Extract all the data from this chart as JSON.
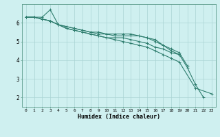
{
  "bg_color": "#cff0f0",
  "grid_color": "#aad4d4",
  "line_color": "#2e7d6e",
  "xlabel": "Humidex (Indice chaleur)",
  "xlim": [
    -0.5,
    23.5
  ],
  "ylim": [
    1.5,
    7.0
  ],
  "yticks": [
    2,
    3,
    4,
    5,
    6
  ],
  "xticks": [
    0,
    1,
    2,
    3,
    4,
    5,
    6,
    7,
    8,
    9,
    10,
    11,
    12,
    13,
    14,
    15,
    16,
    17,
    18,
    19,
    20,
    21,
    22,
    23
  ],
  "series": [
    {
      "x": [
        0,
        1,
        2,
        3,
        4,
        5,
        6,
        7,
        8,
        9,
        10,
        11,
        12,
        13,
        14,
        15,
        16,
        17,
        18,
        19
      ],
      "y": [
        6.3,
        6.3,
        6.3,
        6.7,
        5.9,
        5.8,
        5.7,
        5.6,
        5.5,
        5.5,
        5.4,
        5.4,
        5.4,
        5.4,
        5.3,
        5.2,
        5.1,
        4.8,
        4.5,
        4.3
      ]
    },
    {
      "x": [
        0,
        1,
        2,
        3,
        4,
        5,
        6,
        7,
        8,
        9,
        10,
        11,
        12,
        13,
        14,
        15,
        16,
        17,
        18,
        19,
        20
      ],
      "y": [
        6.3,
        6.3,
        6.2,
        6.1,
        5.9,
        5.8,
        5.7,
        5.6,
        5.5,
        5.4,
        5.4,
        5.3,
        5.3,
        5.3,
        5.3,
        5.2,
        5.0,
        4.8,
        4.6,
        4.4,
        3.7
      ]
    },
    {
      "x": [
        0,
        1,
        2,
        3,
        4,
        5,
        6,
        7,
        8,
        9,
        10,
        11,
        12,
        13,
        14,
        15,
        16,
        17,
        18,
        19,
        20,
        21,
        22
      ],
      "y": [
        6.3,
        6.3,
        6.2,
        6.1,
        5.9,
        5.7,
        5.6,
        5.5,
        5.4,
        5.3,
        5.2,
        5.2,
        5.2,
        5.1,
        5.0,
        4.9,
        4.7,
        4.6,
        4.4,
        4.3,
        3.6,
        2.7,
        2.0
      ]
    },
    {
      "x": [
        0,
        1,
        2,
        3,
        4,
        5,
        6,
        7,
        8,
        9,
        10,
        11,
        12,
        13,
        14,
        15,
        16,
        17,
        18,
        19,
        21,
        23
      ],
      "y": [
        6.3,
        6.3,
        6.2,
        6.1,
        5.9,
        5.7,
        5.6,
        5.5,
        5.4,
        5.3,
        5.2,
        5.1,
        5.0,
        4.9,
        4.8,
        4.7,
        4.5,
        4.3,
        4.1,
        3.9,
        2.5,
        2.2
      ]
    }
  ]
}
